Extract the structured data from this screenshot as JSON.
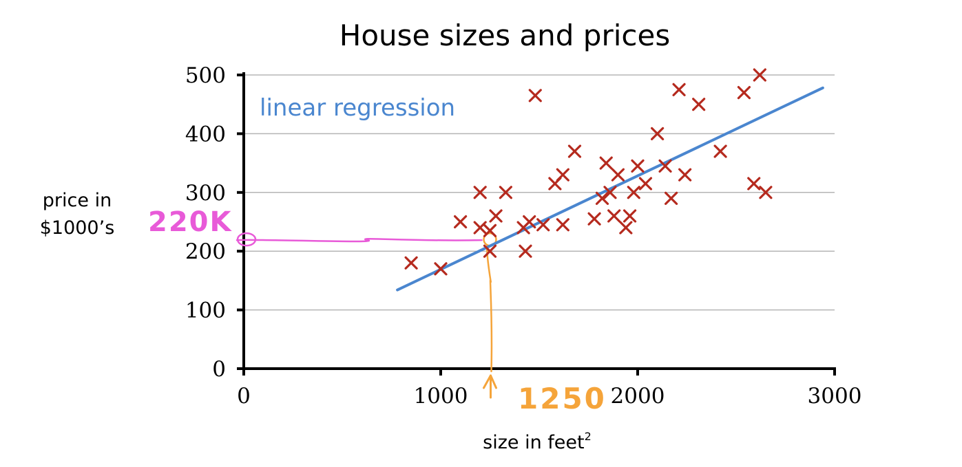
{
  "chart_data": {
    "type": "scatter",
    "title": "House sizes and prices",
    "xlabel": "size in feet",
    "xlabel_superscript": "2",
    "ylabel_lines": [
      "price in",
      "$1000’s"
    ],
    "xlim": [
      0,
      3000
    ],
    "ylim": [
      0,
      500
    ],
    "x_ticks": [
      0,
      1000,
      2000,
      3000
    ],
    "y_ticks": [
      0,
      100,
      200,
      300,
      400,
      500
    ],
    "grid": true,
    "colors": {
      "points": "#b52a1e",
      "regression": "#4a86cf",
      "price_annotation": "#e85ad8",
      "size_annotation": "#f5a43a",
      "grid": "#b5b5b5",
      "axis": "#000000"
    },
    "regression_line": {
      "label": "linear regression",
      "start": [
        780,
        134
      ],
      "end": [
        2940,
        478
      ]
    },
    "points": [
      {
        "x": 850,
        "y": 180
      },
      {
        "x": 1000,
        "y": 170
      },
      {
        "x": 1100,
        "y": 250
      },
      {
        "x": 1200,
        "y": 300
      },
      {
        "x": 1200,
        "y": 240
      },
      {
        "x": 1250,
        "y": 235
      },
      {
        "x": 1250,
        "y": 200
      },
      {
        "x": 1280,
        "y": 260
      },
      {
        "x": 1330,
        "y": 300
      },
      {
        "x": 1420,
        "y": 240
      },
      {
        "x": 1430,
        "y": 200
      },
      {
        "x": 1450,
        "y": 250
      },
      {
        "x": 1480,
        "y": 465
      },
      {
        "x": 1520,
        "y": 245
      },
      {
        "x": 1580,
        "y": 315
      },
      {
        "x": 1620,
        "y": 330
      },
      {
        "x": 1620,
        "y": 245
      },
      {
        "x": 1680,
        "y": 370
      },
      {
        "x": 1780,
        "y": 255
      },
      {
        "x": 1820,
        "y": 290
      },
      {
        "x": 1840,
        "y": 350
      },
      {
        "x": 1860,
        "y": 300
      },
      {
        "x": 1880,
        "y": 260
      },
      {
        "x": 1900,
        "y": 330
      },
      {
        "x": 1940,
        "y": 240
      },
      {
        "x": 1960,
        "y": 260
      },
      {
        "x": 1980,
        "y": 300
      },
      {
        "x": 2000,
        "y": 345
      },
      {
        "x": 2040,
        "y": 315
      },
      {
        "x": 2100,
        "y": 400
      },
      {
        "x": 2140,
        "y": 345
      },
      {
        "x": 2170,
        "y": 290
      },
      {
        "x": 2210,
        "y": 475
      },
      {
        "x": 2240,
        "y": 330
      },
      {
        "x": 2310,
        "y": 450
      },
      {
        "x": 2420,
        "y": 370
      },
      {
        "x": 2540,
        "y": 470
      },
      {
        "x": 2590,
        "y": 315
      },
      {
        "x": 2620,
        "y": 500
      },
      {
        "x": 2650,
        "y": 300
      }
    ],
    "annotations": {
      "input_size": {
        "label": "1250",
        "x": 1250,
        "y": 220
      },
      "predicted_price": {
        "label": "220K",
        "value": 220
      }
    }
  }
}
